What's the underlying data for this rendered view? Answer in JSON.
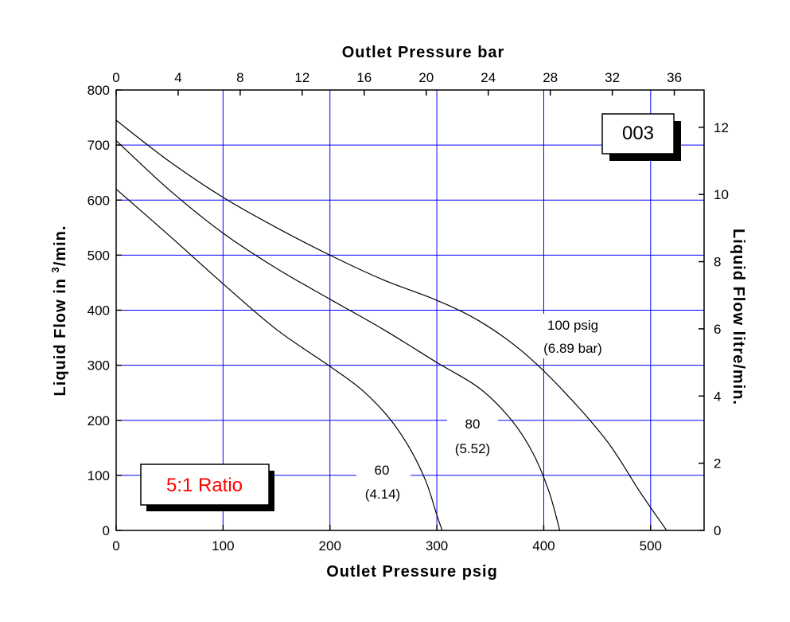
{
  "chart_data": {
    "type": "line",
    "x_bottom": {
      "label": "Outlet Pressure psig",
      "range": [
        0,
        550
      ],
      "ticks": [
        0,
        100,
        200,
        300,
        400,
        500
      ]
    },
    "x_top": {
      "label": "Outlet Pressure bar",
      "range": [
        0,
        37.92
      ],
      "ticks": [
        0,
        4,
        8,
        12,
        16,
        20,
        24,
        28,
        32,
        36
      ]
    },
    "y_left": {
      "label_prefix": "Liquid Flow in",
      "label_sup": "3",
      "label_suffix": "/min.",
      "range": [
        0,
        800
      ],
      "ticks": [
        0,
        100,
        200,
        300,
        400,
        500,
        600,
        700,
        800
      ]
    },
    "y_right": {
      "label": "Liquid Flow litre/min.",
      "range": [
        0,
        13.11
      ],
      "ticks": [
        0,
        2,
        4,
        6,
        8,
        10,
        12
      ]
    },
    "grid": true,
    "series": [
      {
        "line1": "60",
        "line2": "(4.14)",
        "points": [
          [
            0,
            620
          ],
          [
            50,
            535
          ],
          [
            100,
            448
          ],
          [
            150,
            365
          ],
          [
            200,
            298
          ],
          [
            230,
            255
          ],
          [
            255,
            205
          ],
          [
            275,
            148
          ],
          [
            290,
            88
          ],
          [
            300,
            28
          ],
          [
            305,
            0
          ]
        ]
      },
      {
        "line1": "80",
        "line2": "(5.52)",
        "points": [
          [
            0,
            708
          ],
          [
            50,
            618
          ],
          [
            100,
            540
          ],
          [
            150,
            476
          ],
          [
            200,
            420
          ],
          [
            250,
            365
          ],
          [
            300,
            305
          ],
          [
            340,
            258
          ],
          [
            370,
            200
          ],
          [
            390,
            140
          ],
          [
            405,
            70
          ],
          [
            415,
            0
          ]
        ]
      },
      {
        "line1": "100 psig",
        "line2": "(6.89 bar)",
        "points": [
          [
            0,
            745
          ],
          [
            50,
            670
          ],
          [
            100,
            605
          ],
          [
            150,
            550
          ],
          [
            200,
            500
          ],
          [
            250,
            455
          ],
          [
            300,
            418
          ],
          [
            340,
            380
          ],
          [
            380,
            325
          ],
          [
            420,
            250
          ],
          [
            460,
            160
          ],
          [
            490,
            70
          ],
          [
            515,
            0
          ]
        ]
      }
    ],
    "annotations": {
      "code": "003",
      "ratio": "5:1 Ratio"
    }
  },
  "colors": {
    "grid": "#0000ff",
    "ratio_text": "#ff0000",
    "curve": "#000000"
  }
}
